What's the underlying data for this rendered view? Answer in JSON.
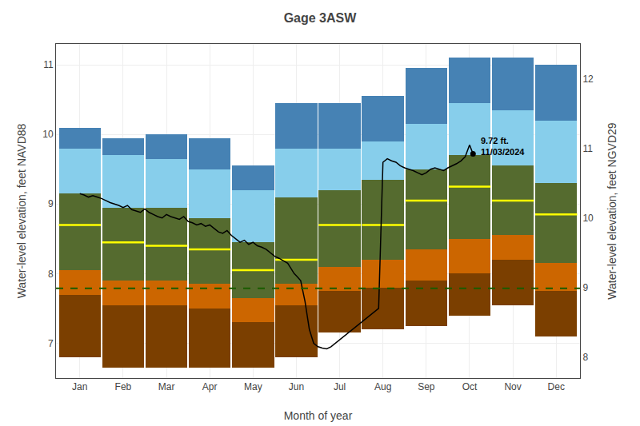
{
  "chart_data": {
    "type": "bar",
    "title": "Gage 3ASW",
    "xlabel": "Month of year",
    "ylabel": "Water-level elevation, feet NAVD88",
    "y2label": "Water-level elevation, feet NGVD29",
    "x": [
      1,
      2,
      3,
      4,
      5,
      6,
      7,
      8,
      9,
      10,
      11,
      12
    ],
    "xlim": [
      0.45,
      12.55
    ],
    "xticks": [
      {
        "value": 1,
        "label": "Jan"
      },
      {
        "value": 2,
        "label": "Feb"
      },
      {
        "value": 3,
        "label": "Mar"
      },
      {
        "value": 4,
        "label": "Apr"
      },
      {
        "value": 5,
        "label": "May"
      },
      {
        "value": 6,
        "label": "Jun"
      },
      {
        "value": 7,
        "label": "Jul"
      },
      {
        "value": 8,
        "label": "Aug"
      },
      {
        "value": 9,
        "label": "Sep"
      },
      {
        "value": 10,
        "label": "Oct"
      },
      {
        "value": 11,
        "label": "Nov"
      },
      {
        "value": 12,
        "label": "Dec"
      }
    ],
    "ylim": [
      6.5,
      11.3
    ],
    "yticks": [
      7,
      8,
      9,
      10,
      11
    ],
    "y2lim": [
      7.7,
      12.5
    ],
    "y2ticks": [
      8,
      9,
      10,
      11,
      12
    ],
    "grid": true,
    "series": [
      {
        "type": "bar",
        "color": "#7B3F00",
        "low": [
          6.8,
          6.65,
          6.65,
          6.65,
          6.65,
          6.8,
          7.15,
          7.2,
          7.25,
          7.4,
          7.55,
          7.1
        ],
        "high": [
          7.7,
          7.55,
          7.55,
          7.5,
          7.3,
          7.55,
          7.75,
          7.8,
          7.9,
          8.0,
          8.2,
          7.75
        ]
      },
      {
        "type": "bar",
        "color": "#CC6600",
        "low": [
          7.7,
          7.55,
          7.55,
          7.5,
          7.3,
          7.55,
          7.75,
          7.8,
          7.9,
          8.0,
          8.2,
          7.75
        ],
        "high": [
          8.05,
          7.9,
          7.9,
          7.85,
          7.65,
          7.85,
          8.1,
          8.2,
          8.35,
          8.5,
          8.55,
          8.15
        ]
      },
      {
        "type": "bar",
        "color": "#556B2F",
        "low": [
          8.05,
          7.9,
          7.9,
          7.85,
          7.65,
          7.85,
          8.1,
          8.2,
          8.35,
          8.5,
          8.55,
          8.15
        ],
        "high": [
          9.15,
          8.95,
          8.95,
          8.8,
          8.45,
          9.1,
          9.2,
          9.35,
          9.5,
          9.7,
          9.55,
          9.3
        ]
      },
      {
        "type": "bar",
        "color": "#87CEEB",
        "low": [
          9.15,
          8.95,
          8.95,
          8.8,
          8.45,
          9.1,
          9.2,
          9.35,
          9.5,
          9.7,
          9.55,
          9.3
        ],
        "high": [
          9.8,
          9.7,
          9.65,
          9.5,
          9.2,
          9.8,
          9.8,
          9.9,
          10.15,
          10.45,
          10.35,
          10.2
        ]
      },
      {
        "type": "bar",
        "color": "#4682B4",
        "low": [
          9.8,
          9.7,
          9.65,
          9.5,
          9.2,
          9.8,
          9.8,
          9.9,
          10.15,
          10.45,
          10.35,
          10.2
        ],
        "high": [
          10.1,
          9.95,
          10.0,
          9.95,
          9.55,
          10.45,
          10.45,
          10.55,
          10.95,
          11.1,
          11.1,
          11.0
        ]
      },
      {
        "type": "median",
        "color": "#FFFF00",
        "values": [
          8.7,
          8.45,
          8.4,
          8.35,
          8.05,
          8.2,
          8.7,
          8.7,
          9.05,
          9.25,
          9.05,
          8.85
        ]
      },
      {
        "type": "hline",
        "color": "#1A5C00",
        "line_style": "dashed",
        "value": 7.79
      },
      {
        "type": "line",
        "color": "#000000",
        "x": [
          1.0,
          1.1,
          1.2,
          1.3,
          1.4,
          1.5,
          1.6,
          1.7,
          1.8,
          1.9,
          2.0,
          2.1,
          2.2,
          2.3,
          2.4,
          2.5,
          2.6,
          2.7,
          2.8,
          2.9,
          3.0,
          3.1,
          3.2,
          3.3,
          3.4,
          3.5,
          3.6,
          3.7,
          3.8,
          3.9,
          4.0,
          4.1,
          4.2,
          4.3,
          4.4,
          4.5,
          4.6,
          4.7,
          4.8,
          4.9,
          5.0,
          5.1,
          5.2,
          5.3,
          5.4,
          5.5,
          5.6,
          5.65,
          5.7,
          5.8,
          5.85,
          5.9,
          5.95,
          6.0,
          6.1,
          6.2,
          6.3,
          6.4,
          6.5,
          6.6,
          6.7,
          6.8,
          6.9,
          7.0,
          7.1,
          7.2,
          7.3,
          7.4,
          7.5,
          7.6,
          7.7,
          7.8,
          7.9,
          8.0,
          8.1,
          8.2,
          8.3,
          8.4,
          8.5,
          8.6,
          8.7,
          8.8,
          8.9,
          9.0,
          9.1,
          9.2,
          9.3,
          9.4,
          9.5,
          9.6,
          9.7,
          9.8,
          9.9,
          10.0,
          10.08
        ],
        "values": [
          9.15,
          9.13,
          9.1,
          9.12,
          9.1,
          9.08,
          9.05,
          9.02,
          9.0,
          8.98,
          8.95,
          8.98,
          8.92,
          8.9,
          8.88,
          8.93,
          8.88,
          8.85,
          8.82,
          8.8,
          8.85,
          8.82,
          8.8,
          8.78,
          8.82,
          8.75,
          8.73,
          8.7,
          8.72,
          8.68,
          8.7,
          8.65,
          8.6,
          8.58,
          8.62,
          8.55,
          8.5,
          8.45,
          8.48,
          8.42,
          8.45,
          8.4,
          8.38,
          8.35,
          8.3,
          8.25,
          8.22,
          8.2,
          8.18,
          8.15,
          8.1,
          8.05,
          8.0,
          7.97,
          7.9,
          7.6,
          7.2,
          7.0,
          6.95,
          6.93,
          6.92,
          6.95,
          7.0,
          7.05,
          7.1,
          7.15,
          7.2,
          7.25,
          7.3,
          7.35,
          7.4,
          7.45,
          7.5,
          9.6,
          9.65,
          9.62,
          9.6,
          9.55,
          9.52,
          9.5,
          9.48,
          9.45,
          9.42,
          9.45,
          9.5,
          9.52,
          9.5,
          9.48,
          9.52,
          9.55,
          9.58,
          9.62,
          9.68,
          9.85,
          9.72
        ]
      },
      {
        "type": "scatter",
        "color": "#000000",
        "marker": "circle",
        "x": [
          10.08
        ],
        "values": [
          9.72
        ]
      }
    ],
    "annotations": [
      {
        "text": "9.72 ft.\n11/03/2024",
        "x": 10.08,
        "y": 9.72
      }
    ]
  }
}
